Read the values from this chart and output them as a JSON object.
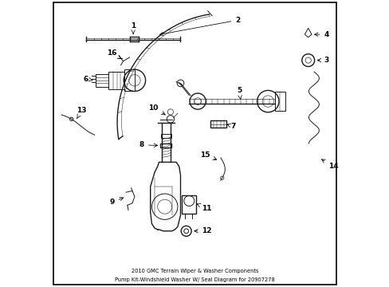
{
  "title1": "2010 GMC Terrain Wiper & Washer Components",
  "title2": "Pump Kit-Windshield Washer W/ Seal Diagram for 20907278",
  "bg_color": "#ffffff",
  "lc": "#1a1a1a",
  "figsize": [
    4.89,
    3.6
  ],
  "dpi": 100
}
